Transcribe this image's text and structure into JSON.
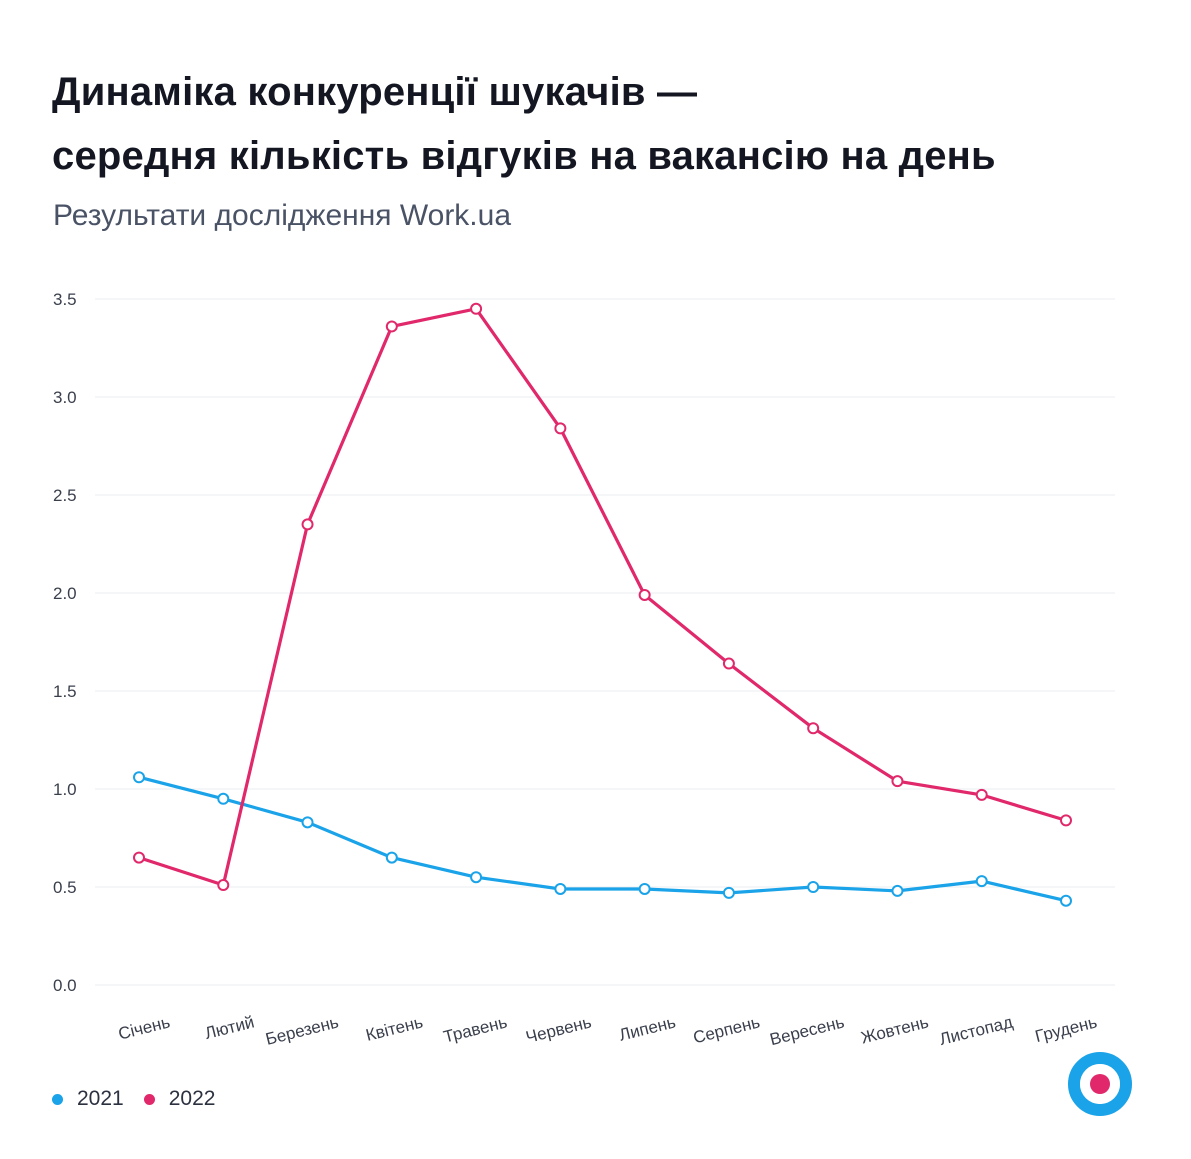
{
  "header": {
    "title_line1": "Динаміка конкуренції шукачів —",
    "title_line2": "середня кількість відгуків на вакансію на день",
    "subtitle": "Результати дослідження Work.ua"
  },
  "colors": {
    "series_2021": "#1aa3e8",
    "series_2022": "#e0286b",
    "grid": "#e9ecf0",
    "axis_text": "#3a3f4c"
  },
  "logo": {
    "icon": "work-ua-target-logo",
    "outer_color": "#1aa3e8",
    "inner_color": "#e0286b"
  },
  "chart_data": {
    "type": "line",
    "title": "Динаміка конкуренції шукачів — середня кількість відгуків на вакансію на день",
    "subtitle": "Результати дослідження Work.ua",
    "categories": [
      "Січень",
      "Лютий",
      "Березень",
      "Квітень",
      "Травень",
      "Червень",
      "Липень",
      "Серпень",
      "Вересень",
      "Жовтень",
      "Листопад",
      "Грудень"
    ],
    "yticks": [
      "0.0",
      "0.5",
      "1.0",
      "1.5",
      "2.0",
      "2.5",
      "3.0",
      "3.5"
    ],
    "ylim": [
      0,
      3.5
    ],
    "grid": true,
    "legend_position": "bottom-left",
    "series": [
      {
        "name": "2021",
        "color": "#1aa3e8",
        "values": [
          1.06,
          0.95,
          0.83,
          0.65,
          0.55,
          0.49,
          0.49,
          0.47,
          0.5,
          0.48,
          0.53,
          0.43
        ]
      },
      {
        "name": "2022",
        "color": "#e0286b",
        "values": [
          0.65,
          0.51,
          2.35,
          3.36,
          3.45,
          2.84,
          1.99,
          1.64,
          1.31,
          1.04,
          0.97,
          0.84
        ]
      }
    ]
  }
}
